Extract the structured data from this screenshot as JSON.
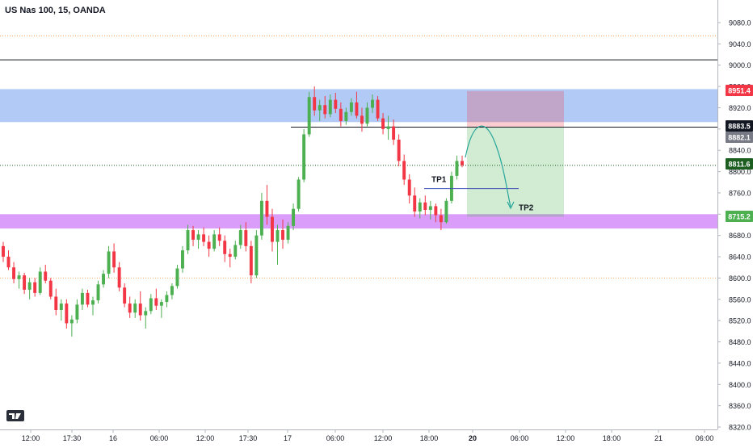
{
  "chart_title": "US Nas 100, 15, OANDA",
  "chart_data": {
    "type": "candlestick",
    "title": "US Nas 100, 15, OANDA",
    "symbol": "US Nas 100",
    "interval": "15",
    "source": "OANDA",
    "ylim": [
      8310,
      9130
    ],
    "y_ticks": [
      9080.0,
      9040.0,
      9000.0,
      8960.0,
      8920.0,
      8880.0,
      8840.0,
      8800.0,
      8760.0,
      8720.0,
      8680.0,
      8640.0,
      8600.0,
      8560.0,
      8520.0,
      8480.0,
      8440.0,
      8400.0,
      8360.0,
      8320.0
    ],
    "x_ticks": [
      "12:00",
      "17:30",
      "16",
      "06:00",
      "12:00",
      "17:30",
      "17",
      "06:00",
      "12:00",
      "18:00",
      "20",
      "06:00",
      "12:00",
      "18:00",
      "21",
      "06:00"
    ],
    "price_labels": [
      {
        "value": "8951.4",
        "color": "#f23645"
      },
      {
        "value": "8883.5",
        "color": "#131722"
      },
      {
        "value": "8882.1",
        "color": "#787b86"
      },
      {
        "value": "8811.6",
        "color": "#1b5e20"
      },
      {
        "value": "8715.2",
        "color": "#4caf50"
      }
    ],
    "zones": [
      {
        "name": "resistance-zone",
        "from": 8893,
        "to": 8955,
        "color": "#a4c2f4"
      },
      {
        "name": "support-zone",
        "from": 8693,
        "to": 8720,
        "color": "#d48cf8"
      }
    ],
    "horizontal_lines": [
      {
        "name": "level-9010",
        "value": 9010,
        "color": "#131722",
        "style": "solid"
      },
      {
        "name": "level-8883",
        "value": 8883.5,
        "color": "#131722",
        "style": "solid"
      },
      {
        "name": "level-9055",
        "value": 9055,
        "color": "#f5a25d",
        "style": "dotted"
      },
      {
        "name": "level-8600",
        "value": 8600,
        "color": "#f5a25d",
        "style": "dotted"
      },
      {
        "name": "level-8811",
        "value": 8811.6,
        "color": "#1b5e20",
        "style": "dotted"
      }
    ],
    "position": {
      "entry": 8883.5,
      "stop": 8951.4,
      "target": 8715.2
    },
    "annotations": [
      {
        "text": "TP1",
        "value": 8768
      },
      {
        "text": "TP2",
        "value": 8715
      }
    ],
    "colors": {
      "up": "#4caf50",
      "down": "#f23645",
      "wick_up": "#4caf50",
      "wick_down": "#f23645"
    },
    "ohlc": [
      [
        8660,
        8668,
        8630,
        8640
      ],
      [
        8640,
        8652,
        8615,
        8620
      ],
      [
        8620,
        8630,
        8590,
        8598
      ],
      [
        8598,
        8612,
        8580,
        8605
      ],
      [
        8605,
        8610,
        8570,
        8578
      ],
      [
        8578,
        8600,
        8560,
        8592
      ],
      [
        8592,
        8600,
        8565,
        8572
      ],
      [
        8572,
        8620,
        8568,
        8612
      ],
      [
        8612,
        8625,
        8590,
        8595
      ],
      [
        8595,
        8600,
        8560,
        8565
      ],
      [
        8565,
        8580,
        8530,
        8540
      ],
      [
        8540,
        8560,
        8520,
        8552
      ],
      [
        8552,
        8560,
        8505,
        8515
      ],
      [
        8515,
        8530,
        8490,
        8522
      ],
      [
        8522,
        8560,
        8515,
        8550
      ],
      [
        8550,
        8580,
        8540,
        8572
      ],
      [
        8572,
        8578,
        8545,
        8550
      ],
      [
        8550,
        8565,
        8530,
        8558
      ],
      [
        8558,
        8595,
        8552,
        8588
      ],
      [
        8588,
        8615,
        8582,
        8608
      ],
      [
        8608,
        8660,
        8600,
        8650
      ],
      [
        8650,
        8665,
        8610,
        8620
      ],
      [
        8620,
        8630,
        8575,
        8582
      ],
      [
        8582,
        8590,
        8545,
        8552
      ],
      [
        8552,
        8565,
        8525,
        8535
      ],
      [
        8535,
        8560,
        8525,
        8552
      ],
      [
        8552,
        8575,
        8520,
        8530
      ],
      [
        8530,
        8545,
        8505,
        8538
      ],
      [
        8538,
        8570,
        8532,
        8562
      ],
      [
        8562,
        8580,
        8540,
        8548
      ],
      [
        8548,
        8560,
        8525,
        8555
      ],
      [
        8555,
        8575,
        8545,
        8568
      ],
      [
        8568,
        8590,
        8560,
        8585
      ],
      [
        8585,
        8625,
        8580,
        8618
      ],
      [
        8618,
        8660,
        8610,
        8652
      ],
      [
        8652,
        8700,
        8645,
        8690
      ],
      [
        8690,
        8698,
        8660,
        8672
      ],
      [
        8672,
        8690,
        8655,
        8682
      ],
      [
        8682,
        8695,
        8660,
        8668
      ],
      [
        8668,
        8680,
        8640,
        8655
      ],
      [
        8655,
        8690,
        8650,
        8682
      ],
      [
        8682,
        8695,
        8660,
        8670
      ],
      [
        8670,
        8680,
        8630,
        8645
      ],
      [
        8645,
        8655,
        8620,
        8640
      ],
      [
        8640,
        8670,
        8635,
        8662
      ],
      [
        8662,
        8700,
        8655,
        8690
      ],
      [
        8690,
        8705,
        8650,
        8660
      ],
      [
        8660,
        8670,
        8590,
        8605
      ],
      [
        8605,
        8690,
        8600,
        8680
      ],
      [
        8680,
        8760,
        8672,
        8745
      ],
      [
        8745,
        8775,
        8700,
        8715
      ],
      [
        8715,
        8730,
        8650,
        8668
      ],
      [
        8668,
        8700,
        8625,
        8690
      ],
      [
        8690,
        8710,
        8655,
        8672
      ],
      [
        8672,
        8705,
        8665,
        8698
      ],
      [
        8698,
        8740,
        8690,
        8730
      ],
      [
        8730,
        8790,
        8725,
        8785
      ],
      [
        8785,
        8880,
        8780,
        8870
      ],
      [
        8870,
        8950,
        8865,
        8940
      ],
      [
        8940,
        8960,
        8905,
        8915
      ],
      [
        8915,
        8935,
        8895,
        8925
      ],
      [
        8925,
        8942,
        8900,
        8908
      ],
      [
        8908,
        8945,
        8902,
        8935
      ],
      [
        8935,
        8948,
        8910,
        8918
      ],
      [
        8918,
        8930,
        8885,
        8895
      ],
      [
        8895,
        8920,
        8888,
        8912
      ],
      [
        8912,
        8938,
        8905,
        8930
      ],
      [
        8930,
        8950,
        8900,
        8905
      ],
      [
        8905,
        8920,
        8875,
        8890
      ],
      [
        8890,
        8930,
        8885,
        8920
      ],
      [
        8920,
        8945,
        8910,
        8935
      ],
      [
        8935,
        8942,
        8895,
        8900
      ],
      [
        8900,
        8910,
        8870,
        8880
      ],
      [
        8880,
        8905,
        8860,
        8885
      ],
      [
        8885,
        8898,
        8850,
        8860
      ],
      [
        8860,
        8870,
        8810,
        8820
      ],
      [
        8820,
        8832,
        8775,
        8785
      ],
      [
        8785,
        8795,
        8740,
        8755
      ],
      [
        8755,
        8770,
        8715,
        8725
      ],
      [
        8725,
        8750,
        8712,
        8742
      ],
      [
        8742,
        8755,
        8718,
        8728
      ],
      [
        8728,
        8745,
        8710,
        8735
      ],
      [
        8735,
        8740,
        8705,
        8718
      ],
      [
        8718,
        8730,
        8690,
        8705
      ],
      [
        8705,
        8750,
        8702,
        8745
      ],
      [
        8745,
        8800,
        8740,
        8792
      ],
      [
        8792,
        8830,
        8785,
        8820
      ],
      [
        8820,
        8830,
        8808,
        8812
      ]
    ]
  }
}
